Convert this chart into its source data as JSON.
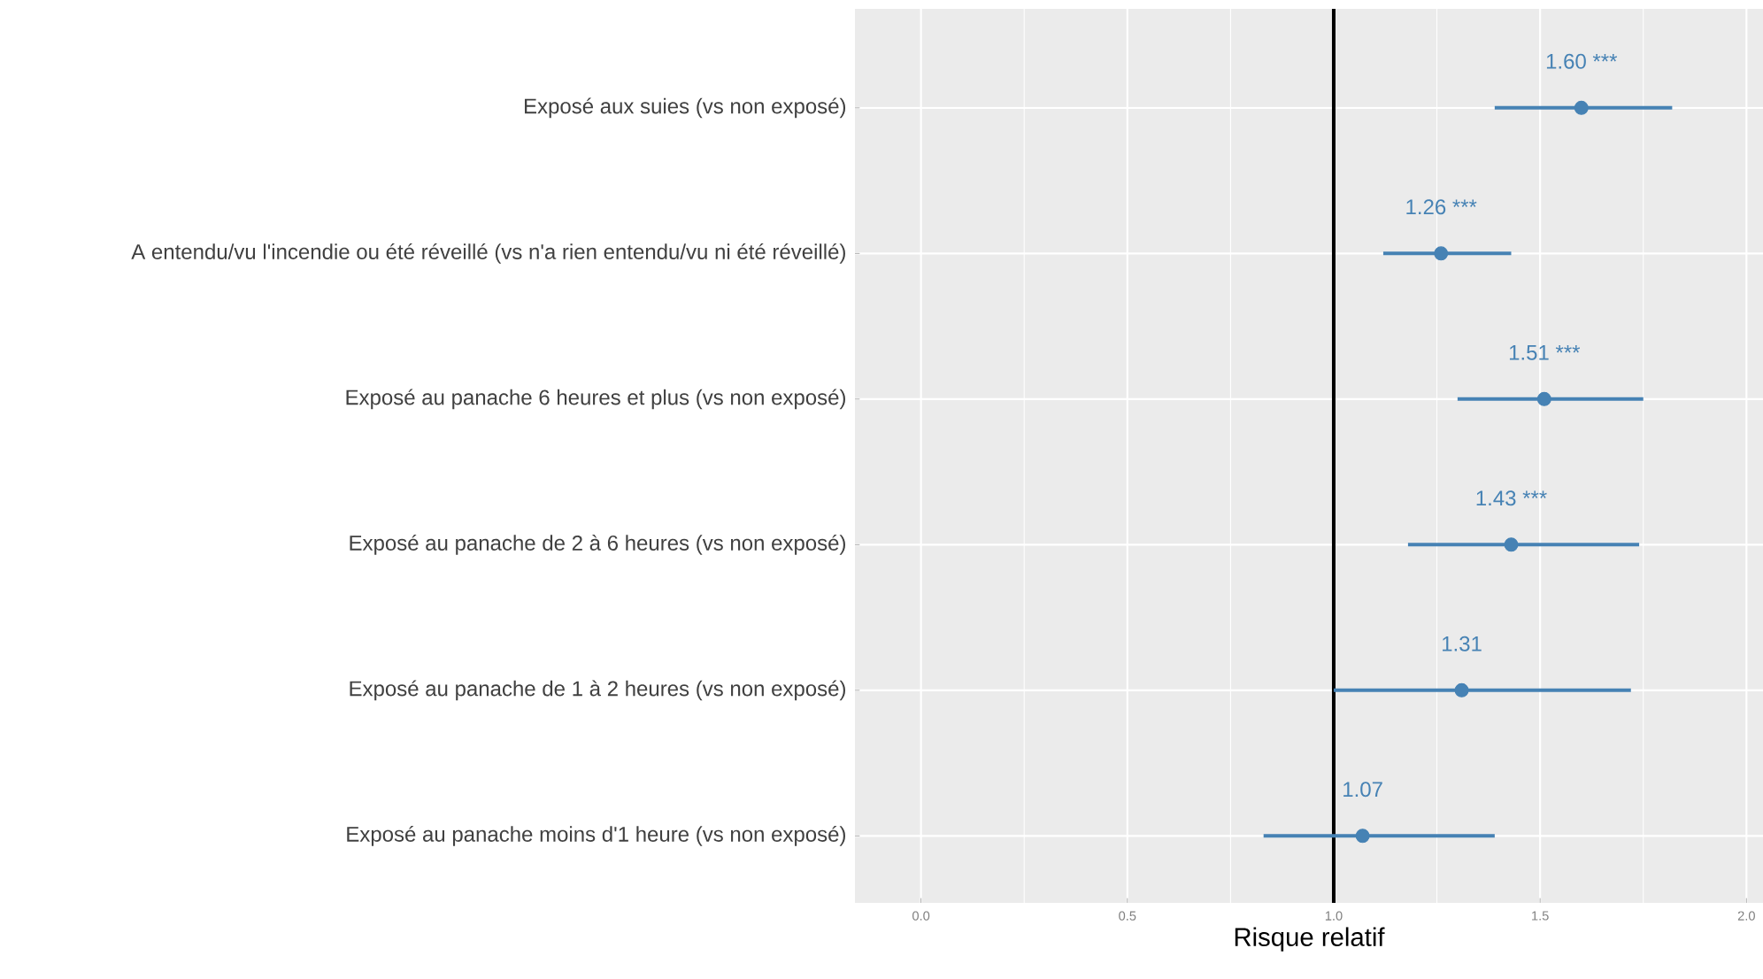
{
  "chart_data": {
    "type": "scatter",
    "orientation": "horizontal",
    "xlabel": "Risque relatif",
    "categories": [
      "Exposé aux suies (vs non exposé)",
      "A entendu/vu l'incendie ou été réveillé (vs n'a rien entendu/vu ni été réveillé)",
      "Exposé au panache 6 heures et plus (vs non exposé)",
      "Exposé au panache de 2 à 6 heures (vs non exposé)",
      "Exposé au panache de 1 à 2 heures (vs non exposé)",
      "Exposé au panache moins d'1 heure (vs non exposé)"
    ],
    "values": [
      1.6,
      1.26,
      1.51,
      1.43,
      1.31,
      1.07
    ],
    "errors": [
      [
        1.39,
        1.82
      ],
      [
        1.12,
        1.43
      ],
      [
        1.3,
        1.75
      ],
      [
        1.18,
        1.74
      ],
      [
        1.0,
        1.72
      ],
      [
        0.83,
        1.39
      ]
    ],
    "value_labels": [
      "1.60 ***",
      "1.26 ***",
      "1.51 ***",
      "1.43 ***",
      "1.31",
      "1.07"
    ],
    "color": "#4682b4",
    "marker": "circle",
    "xlim": [
      -0.16,
      2.04
    ],
    "xticks": [
      {
        "value": 0,
        "label": "0.0"
      },
      {
        "value": 0.5,
        "label": "0.5"
      },
      {
        "value": 1,
        "label": "1.0"
      },
      {
        "value": 1.5,
        "label": "1.5"
      },
      {
        "value": 2,
        "label": "2.0"
      }
    ],
    "ref_lines": [
      {
        "axis": "x",
        "value": 1,
        "color": "#000000"
      }
    ],
    "grid": true
  }
}
